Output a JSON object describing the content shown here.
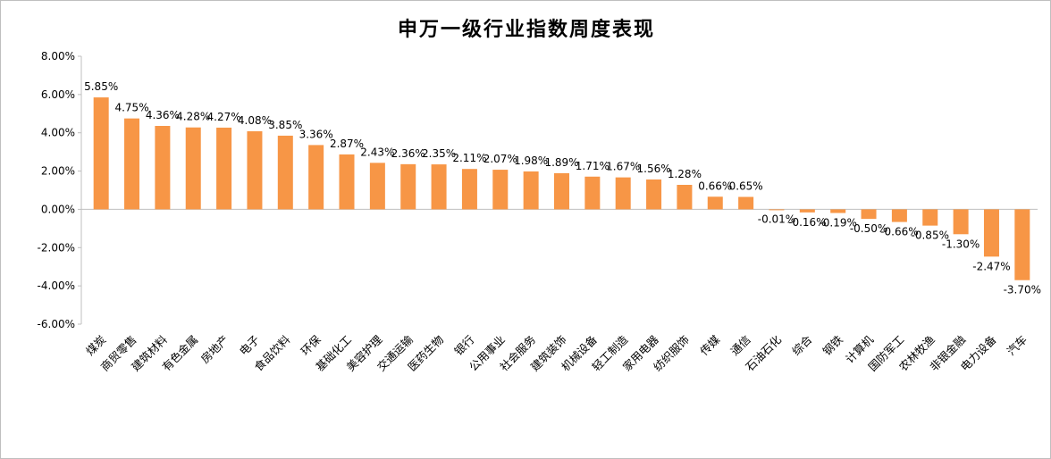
{
  "chart_data": {
    "type": "bar",
    "title": "申万一级行业指数周度表现",
    "xlabel": "",
    "ylabel": "",
    "ylim": [
      -6,
      8
    ],
    "yticks": [
      8,
      6,
      4,
      2,
      0,
      -2,
      -4,
      -6
    ],
    "ytick_labels": [
      "8.00%",
      "6.00%",
      "4.00%",
      "2.00%",
      "0.00%",
      "-2.00%",
      "-4.00%",
      "-6.00%"
    ],
    "grid": false,
    "legend": "none",
    "bar_color": "#F79646",
    "categories": [
      "煤炭",
      "商贸零售",
      "建筑材料",
      "有色金属",
      "房地产",
      "电子",
      "食品饮料",
      "环保",
      "基础化工",
      "美容护理",
      "交通运输",
      "医药生物",
      "银行",
      "公用事业",
      "社会服务",
      "建筑装饰",
      "机械设备",
      "轻工制造",
      "家用电器",
      "纺织服饰",
      "传媒",
      "通信",
      "石油石化",
      "综合",
      "钢铁",
      "计算机",
      "国防军工",
      "农林牧渔",
      "非银金融",
      "电力设备",
      "汽车"
    ],
    "values": [
      5.85,
      4.75,
      4.36,
      4.28,
      4.27,
      4.08,
      3.85,
      3.36,
      2.87,
      2.43,
      2.36,
      2.35,
      2.11,
      2.07,
      1.98,
      1.89,
      1.71,
      1.67,
      1.56,
      1.28,
      0.66,
      0.65,
      -0.01,
      -0.16,
      -0.19,
      -0.5,
      -0.66,
      -0.85,
      -1.3,
      -2.47,
      -3.7
    ],
    "data_labels": [
      "5.85%",
      "4.75%",
      "4.36%",
      "4.28%",
      "4.27%",
      "4.08%",
      "3.85%",
      "3.36%",
      "2.87%",
      "2.43%",
      "2.36%",
      "2.35%",
      "2.11%",
      "2.07%",
      "1.98%",
      "1.89%",
      "1.71%",
      "1.67%",
      "1.56%",
      "1.28%",
      "0.66%",
      "0.65%",
      "-0.01%",
      "-0.16%",
      "-0.19%",
      "-0.50%",
      "-0.66%",
      "-0.85%",
      "-1.30%",
      "-2.47%",
      "-3.70%"
    ]
  }
}
